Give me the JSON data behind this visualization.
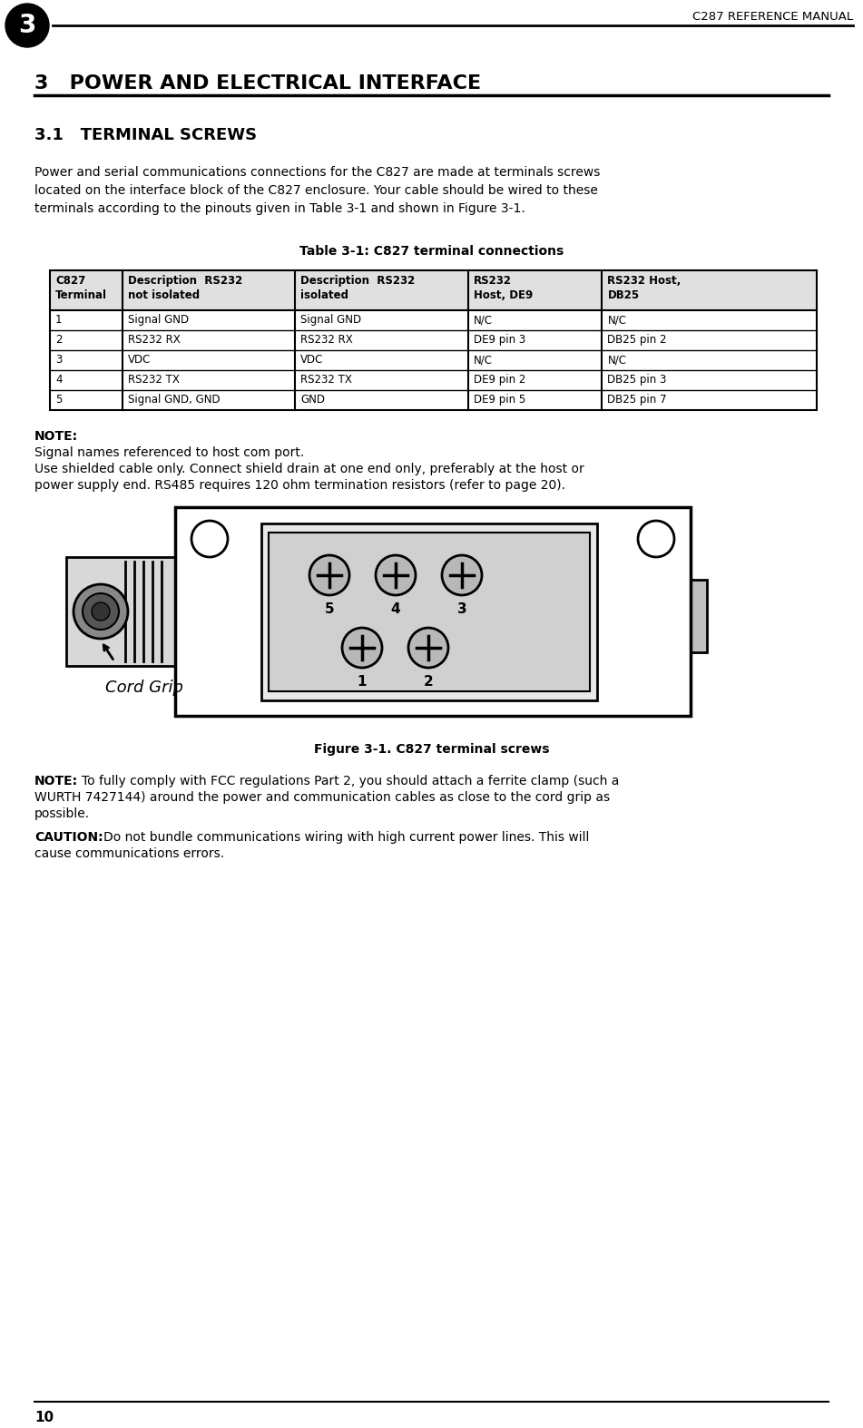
{
  "page_number": "10",
  "chapter_number": "3",
  "header_title": "C287 REFERENCE MANUAL",
  "chapter_title": "3   POWER AND ELECTRICAL INTERFACE",
  "section_title": "3.1   TERMINAL SCREWS",
  "body_text_lines": [
    "Power and serial communications connections for the C827 are made at terminals screws",
    "located on the interface block of the C827 enclosure. Your cable should be wired to these",
    "terminals according to the pinouts given in Table 3-1 and shown in Figure 3-1."
  ],
  "table_title": "Table 3-1: C827 terminal connections",
  "table_col1_headers": [
    "C827",
    "Terminal"
  ],
  "table_col2_headers": [
    "Description  RS232",
    "not isolated"
  ],
  "table_col3_headers": [
    "Description  RS232",
    "isolated"
  ],
  "table_col4_headers": [
    "RS232",
    "Host, DE9"
  ],
  "table_col5_headers": [
    "RS232 Host,",
    "DB25"
  ],
  "table_rows": [
    [
      "1",
      "Signal GND",
      "Signal GND",
      "N/C",
      "N/C"
    ],
    [
      "2",
      "RS232 RX",
      "RS232 RX",
      "DE9 pin 3",
      "DB25 pin 2"
    ],
    [
      "3",
      "VDC",
      "VDC",
      "N/C",
      "N/C"
    ],
    [
      "4",
      "RS232 TX",
      "RS232 TX",
      "DE9 pin 2",
      "DB25 pin 3"
    ],
    [
      "5",
      "Signal GND, GND",
      "GND",
      "DE9 pin 5",
      "DB25 pin 7"
    ]
  ],
  "note_label": "NOTE:",
  "note_line1": "Signal names referenced to host com port.",
  "note_line2a": "Use shielded cable only. Connect shield drain at one end only, preferably at the host or",
  "note_line2b": "power supply end. RS485 requires 120 ohm termination resistors (refer to page 20).",
  "figure_caption": "Figure 3-1. C827 terminal screws",
  "cord_grip_label": "Cord Grip",
  "note2_label": "NOTE:",
  "note2_text": "To fully comply with FCC regulations Part 2, you should attach a ferrite clamp (such a\nWURTH 7427144) around the power and communication cables as close to the cord grip as\npossible.",
  "caution_label": "CAUTION:",
  "caution_text": "Do not bundle communications wiring with high current power lines. This will\ncause communications errors.",
  "bg_color": "#ffffff",
  "text_color": "#000000"
}
